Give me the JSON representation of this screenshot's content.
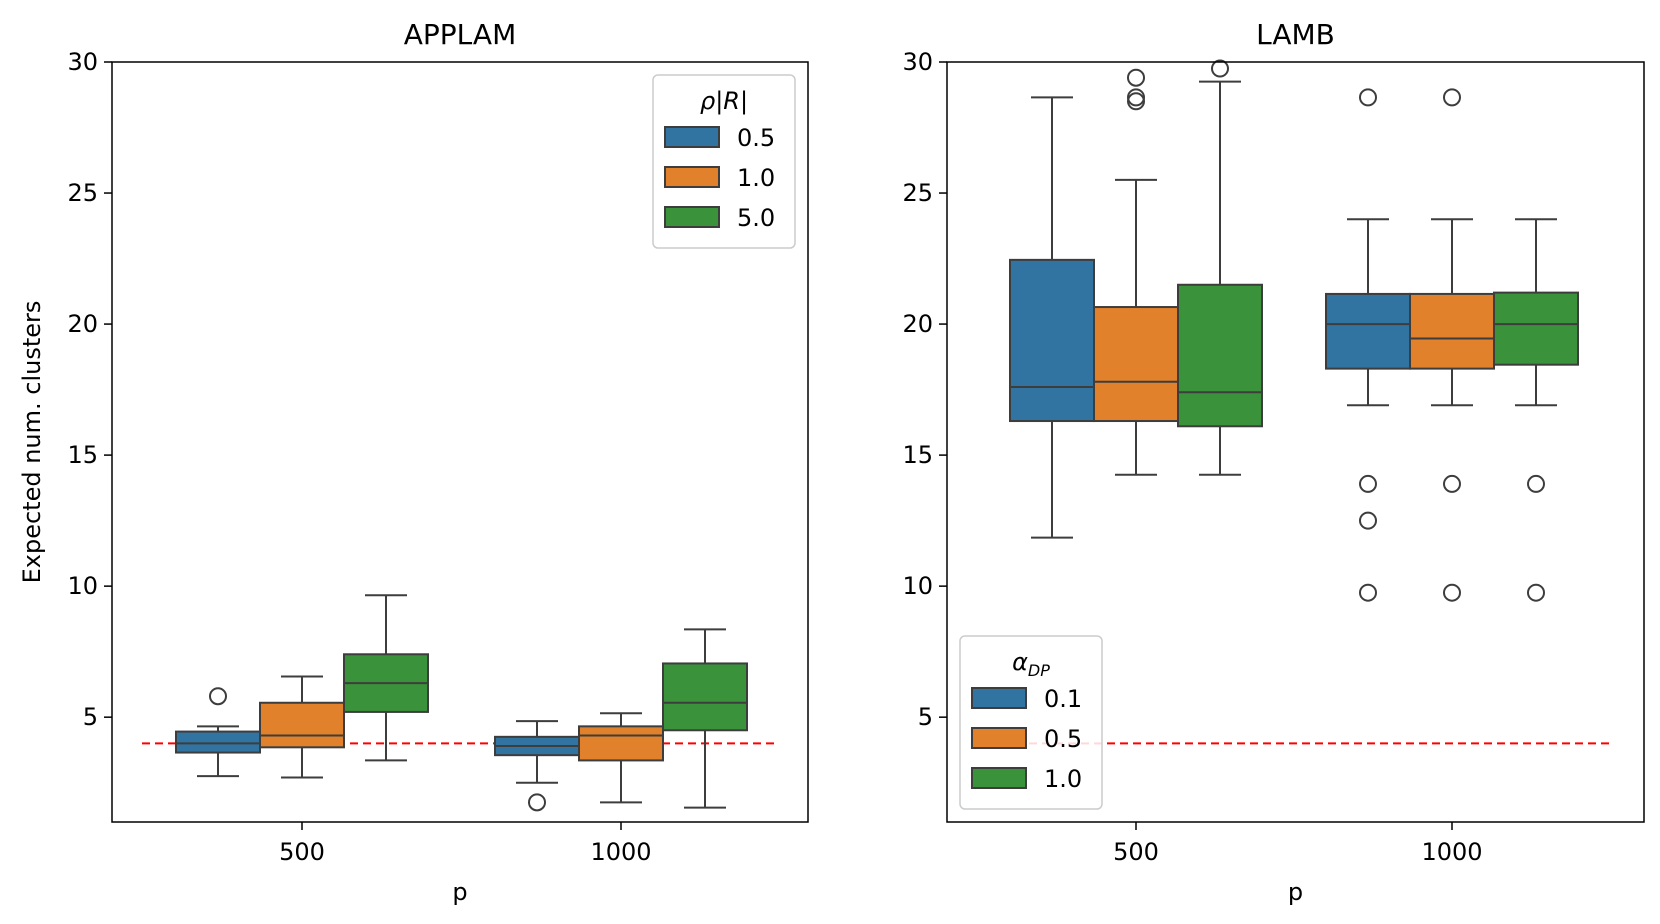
{
  "figure": {
    "ylabel": "Expected num. clusters",
    "reference_color": "#ff0000"
  },
  "chart_data": [
    {
      "type": "boxplot",
      "title": "APPLAM",
      "xlabel": "p",
      "ylabel": "Expected num. clusters",
      "categories": [
        "500",
        "1000"
      ],
      "yticks": [
        5,
        10,
        15,
        20,
        25,
        30
      ],
      "ylim": [
        1.0,
        30
      ],
      "reference_line": 4,
      "legend": {
        "title": "ρ|R|",
        "placement": "top-right"
      },
      "series": [
        {
          "name": "0.5",
          "color": "#3274a1",
          "boxes": [
            {
              "whislo": 2.75,
              "q1": 3.65,
              "med": 4.0,
              "q3": 4.45,
              "whishi": 4.65,
              "fliers": [
                5.8
              ]
            },
            {
              "whislo": 2.5,
              "q1": 3.55,
              "med": 3.9,
              "q3": 4.25,
              "whishi": 4.85,
              "fliers": [
                1.75
              ]
            }
          ]
        },
        {
          "name": "1.0",
          "color": "#e1812c",
          "boxes": [
            {
              "whislo": 2.7,
              "q1": 3.85,
              "med": 4.3,
              "q3": 5.55,
              "whishi": 6.55,
              "fliers": []
            },
            {
              "whislo": 1.75,
              "q1": 3.35,
              "med": 4.3,
              "q3": 4.65,
              "whishi": 5.15,
              "fliers": []
            }
          ]
        },
        {
          "name": "5.0",
          "color": "#3a923a",
          "boxes": [
            {
              "whislo": 3.35,
              "q1": 5.2,
              "med": 6.3,
              "q3": 7.4,
              "whishi": 9.65,
              "fliers": []
            },
            {
              "whislo": 1.55,
              "q1": 4.5,
              "med": 5.55,
              "q3": 7.05,
              "whishi": 8.35,
              "fliers": []
            }
          ]
        }
      ]
    },
    {
      "type": "boxplot",
      "title": "LAMB",
      "xlabel": "p",
      "ylabel": "",
      "categories": [
        "500",
        "1000"
      ],
      "yticks": [
        5,
        10,
        15,
        20,
        25,
        30
      ],
      "ylim": [
        1.0,
        30
      ],
      "reference_line": 4,
      "legend": {
        "title": "αDP",
        "title_main": "α",
        "title_sub": "DP",
        "placement": "lower-left"
      },
      "series": [
        {
          "name": "0.1",
          "color": "#3274a1",
          "boxes": [
            {
              "whislo": 11.85,
              "q1": 16.3,
              "med": 17.6,
              "q3": 22.45,
              "whishi": 28.65,
              "fliers": []
            },
            {
              "whislo": 16.9,
              "q1": 18.3,
              "med": 20.0,
              "q3": 21.15,
              "whishi": 24.0,
              "fliers": [
                28.65,
                13.9,
                12.5,
                9.75
              ]
            }
          ]
        },
        {
          "name": "0.5",
          "color": "#e1812c",
          "boxes": [
            {
              "whislo": 14.25,
              "q1": 16.3,
              "med": 17.8,
              "q3": 20.65,
              "whishi": 25.5,
              "fliers": [
                29.4,
                28.65,
                28.5
              ]
            },
            {
              "whislo": 16.9,
              "q1": 18.3,
              "med": 19.45,
              "q3": 21.15,
              "whishi": 24.0,
              "fliers": [
                28.65,
                13.9,
                9.75
              ]
            }
          ]
        },
        {
          "name": "1.0",
          "color": "#3a923a",
          "boxes": [
            {
              "whislo": 14.25,
              "q1": 16.1,
              "med": 17.4,
              "q3": 21.5,
              "whishi": 29.25,
              "fliers": [
                29.75
              ]
            },
            {
              "whislo": 16.9,
              "q1": 18.45,
              "med": 20.0,
              "q3": 21.2,
              "whishi": 24.0,
              "fliers": [
                13.9,
                9.75
              ]
            }
          ]
        }
      ]
    }
  ]
}
